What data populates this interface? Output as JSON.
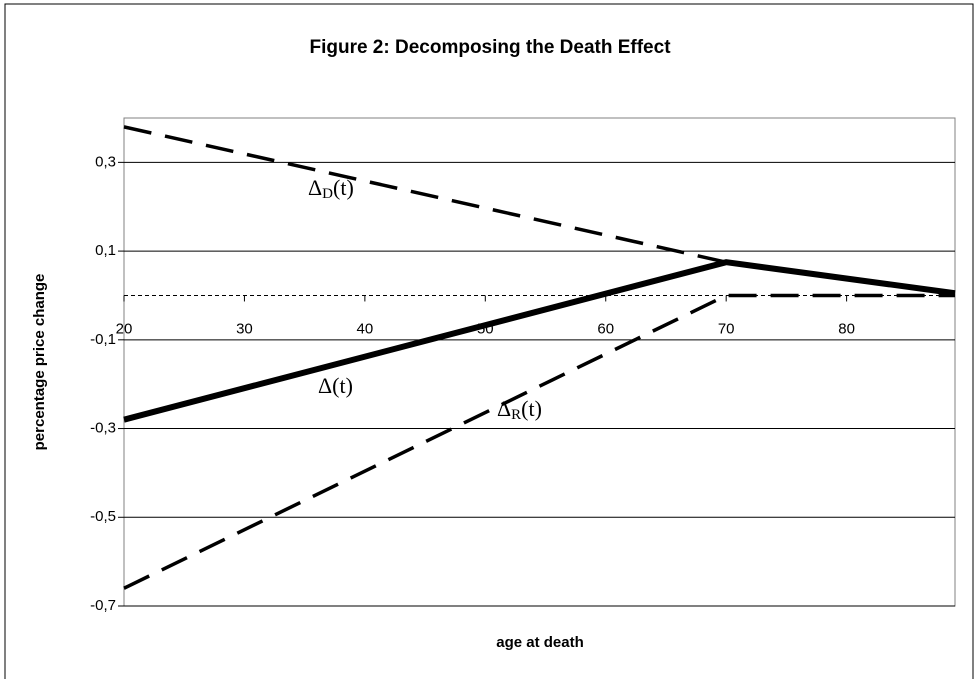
{
  "chart_data": {
    "type": "line",
    "title": "Figure 2: Decomposing the Death Effect",
    "x_label": "age at death",
    "y_label": "percentage price change",
    "xlim": [
      20,
      89
    ],
    "xticks": [
      20,
      30,
      40,
      50,
      60,
      70,
      80
    ],
    "ylim": [
      -0.7,
      0.4
    ],
    "yticks": [
      {
        "value": 0.3,
        "label": "0,3"
      },
      {
        "value": 0.1,
        "label": "0,1"
      },
      {
        "value": -0.1,
        "label": "-0,1"
      },
      {
        "value": -0.3,
        "label": "-0,3"
      },
      {
        "value": -0.5,
        "label": "-0,5"
      },
      {
        "value": -0.7,
        "label": "-0,7"
      }
    ],
    "grid": true,
    "series": [
      {
        "name": "Δ(t)",
        "color": "#000000",
        "dashed": false,
        "x": [
          20,
          70,
          89
        ],
        "values": [
          -0.28,
          0.075,
          0.005
        ]
      },
      {
        "name": "ΔD(t)",
        "color": "#000000",
        "dashed": true,
        "x": [
          20,
          70
        ],
        "values": [
          0.38,
          0.075
        ]
      },
      {
        "name": "ΔR(t)",
        "color": "#000000",
        "dashed": true,
        "x": [
          20,
          70,
          89
        ],
        "values": [
          -0.66,
          0,
          0
        ]
      }
    ],
    "annotations": [
      {
        "symbol": "Δ",
        "sub": "D",
        "suffix": "(t)"
      },
      {
        "symbol": "Δ",
        "sub": "",
        "suffix": "(t)"
      },
      {
        "symbol": "Δ",
        "sub": "R",
        "suffix": "(t)"
      }
    ]
  }
}
